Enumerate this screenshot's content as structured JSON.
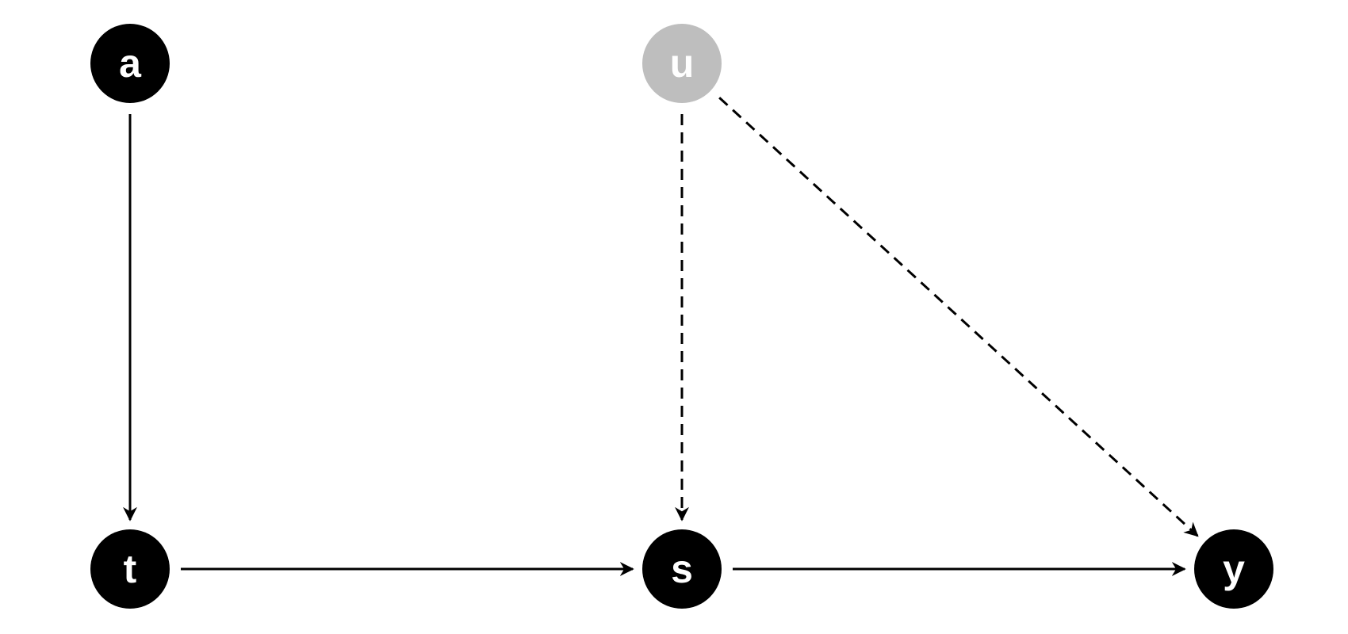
{
  "diagram": {
    "type": "directed-graph",
    "colors": {
      "observed_node": "#000000",
      "latent_node": "#bebebe",
      "node_text": "#ffffff",
      "edge": "#000000"
    },
    "nodes": [
      {
        "id": "a",
        "label": "a",
        "latent": false
      },
      {
        "id": "u",
        "label": "u",
        "latent": true
      },
      {
        "id": "t",
        "label": "t",
        "latent": false
      },
      {
        "id": "s",
        "label": "s",
        "latent": false
      },
      {
        "id": "y",
        "label": "y",
        "latent": false
      }
    ],
    "edges": [
      {
        "from": "a",
        "to": "t",
        "style": "solid"
      },
      {
        "from": "t",
        "to": "s",
        "style": "solid"
      },
      {
        "from": "s",
        "to": "y",
        "style": "solid"
      },
      {
        "from": "u",
        "to": "s",
        "style": "dashed"
      },
      {
        "from": "u",
        "to": "y",
        "style": "dashed"
      }
    ]
  }
}
